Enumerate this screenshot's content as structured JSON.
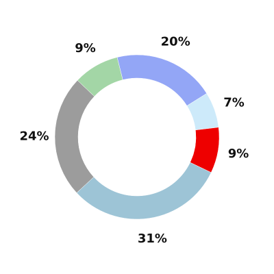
{
  "chart_data": {
    "type": "pie",
    "variant": "donut",
    "title": "",
    "slices": [
      {
        "label": "20%",
        "value": 20,
        "color": "#93a6f6"
      },
      {
        "label": "7%",
        "value": 7,
        "color": "#cdeafa"
      },
      {
        "label": "9%",
        "value": 9,
        "color": "#ee0000"
      },
      {
        "label": "31%",
        "value": 31,
        "color": "#9dc4d6"
      },
      {
        "label": "24%",
        "value": 24,
        "color": "#9c9c9c"
      },
      {
        "label": "9%",
        "value": 9,
        "color": "#a3d6a6"
      }
    ],
    "start_angle_deg": -14,
    "direction": "clockwise",
    "legend": "none"
  }
}
